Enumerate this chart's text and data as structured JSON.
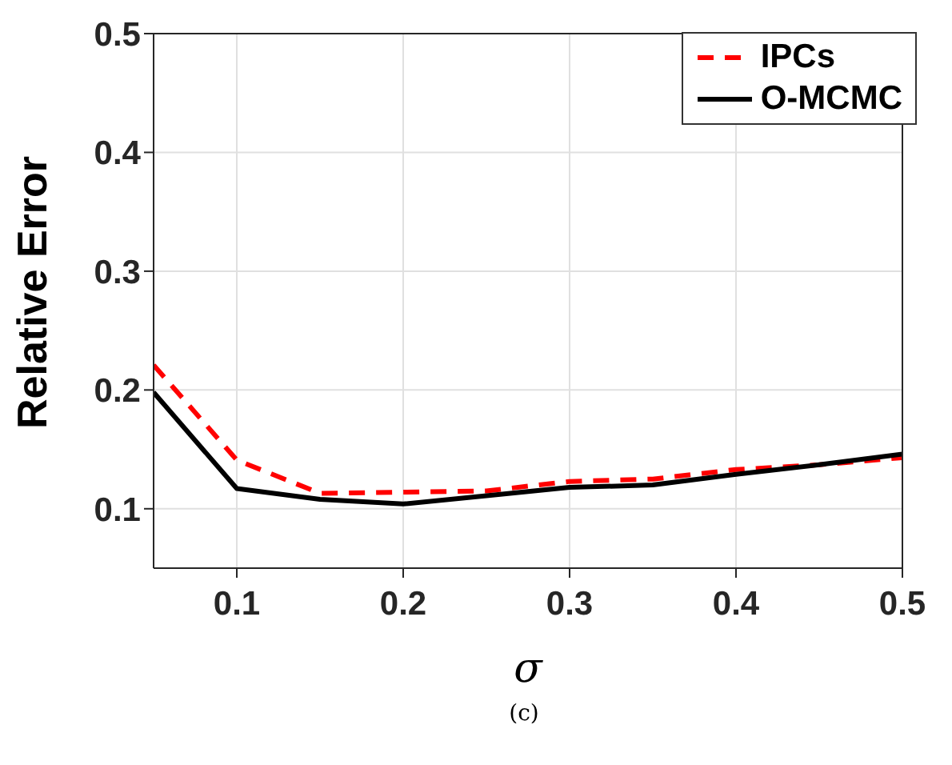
{
  "chart_data": {
    "type": "line",
    "xlabel": "σ",
    "ylabel": "Relative Error",
    "x": [
      0.05,
      0.1,
      0.15,
      0.2,
      0.25,
      0.3,
      0.35,
      0.4,
      0.45,
      0.5
    ],
    "series": [
      {
        "name": "IPCs",
        "color": "#ff0000",
        "line_style": "dashed",
        "values": [
          0.221,
          0.141,
          0.113,
          0.114,
          0.115,
          0.123,
          0.125,
          0.133,
          0.137,
          0.143
        ]
      },
      {
        "name": "O-MCMC",
        "color": "#000000",
        "line_style": "solid",
        "values": [
          0.198,
          0.117,
          0.108,
          0.104,
          0.111,
          0.118,
          0.12,
          0.129,
          0.137,
          0.146
        ]
      }
    ],
    "xlim": [
      0.05,
      0.5
    ],
    "xticks": [
      0.1,
      0.2,
      0.3,
      0.4,
      0.5
    ],
    "ylim": [
      0.05,
      0.5
    ],
    "yticks": [
      0.1,
      0.2,
      0.3,
      0.4,
      0.5
    ],
    "grid": true,
    "legend": "top right",
    "marker": "none",
    "annotations": [
      "(c)"
    ]
  }
}
